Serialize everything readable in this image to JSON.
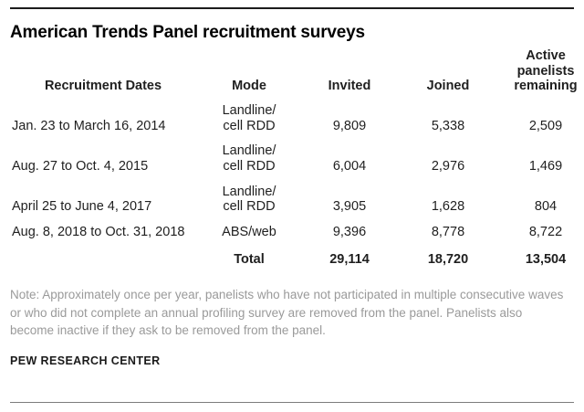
{
  "title": "American Trends Panel recruitment surveys",
  "table": {
    "headers": {
      "dates": "Recruitment Dates",
      "mode": "Mode",
      "invited": "Invited",
      "joined": "Joined",
      "active": "Active panelists remaining"
    },
    "rows": [
      {
        "dates": "Jan. 23 to March 16, 2014",
        "mode": "Landline/\ncell RDD",
        "invited": "9,809",
        "joined": "5,338",
        "active": "2,509"
      },
      {
        "dates": "Aug. 27 to Oct. 4, 2015",
        "mode": "Landline/\ncell RDD",
        "invited": "6,004",
        "joined": "2,976",
        "active": "1,469"
      },
      {
        "dates": "April 25 to June 4, 2017",
        "mode": "Landline/\ncell RDD",
        "invited": "3,905",
        "joined": "1,628",
        "active": "804"
      },
      {
        "dates": "Aug. 8, 2018 to Oct. 31, 2018",
        "mode": "ABS/web",
        "invited": "9,396",
        "joined": "8,778",
        "active": "8,722"
      }
    ],
    "total": {
      "label": "Total",
      "invited": "29,114",
      "joined": "18,720",
      "active": "13,504"
    }
  },
  "note": "Note: Approximately once per year, panelists who have not participated in multiple consecutive waves or who did not complete an annual profiling survey are removed from the panel. Panelists also become inactive if they ask to be removed from the panel.",
  "footer": "PEW RESEARCH CENTER",
  "colors": {
    "rule_top": "#1c1c1c",
    "rule_bottom": "#7d7d7d",
    "note_gray": "#9a9a9a"
  },
  "chart_data": {
    "type": "table",
    "title": "American Trends Panel recruitment surveys",
    "columns": [
      "Recruitment Dates",
      "Mode",
      "Invited",
      "Joined",
      "Active panelists remaining"
    ],
    "rows": [
      [
        "Jan. 23 to March 16, 2014",
        "Landline/cell RDD",
        9809,
        5338,
        2509
      ],
      [
        "Aug. 27 to Oct. 4, 2015",
        "Landline/cell RDD",
        6004,
        2976,
        1469
      ],
      [
        "April 25 to June 4, 2017",
        "Landline/cell RDD",
        3905,
        1628,
        804
      ],
      [
        "Aug. 8, 2018 to Oct. 31, 2018",
        "ABS/web",
        9396,
        8778,
        8722
      ]
    ],
    "total_row": [
      "",
      "Total",
      29114,
      18720,
      13504
    ],
    "note": "Note: Approximately once per year, panelists who have not participated in multiple consecutive waves or who did not complete an annual profiling survey are removed from the panel. Panelists also become inactive if they ask to be removed from the panel.",
    "source": "PEW RESEARCH CENTER"
  }
}
